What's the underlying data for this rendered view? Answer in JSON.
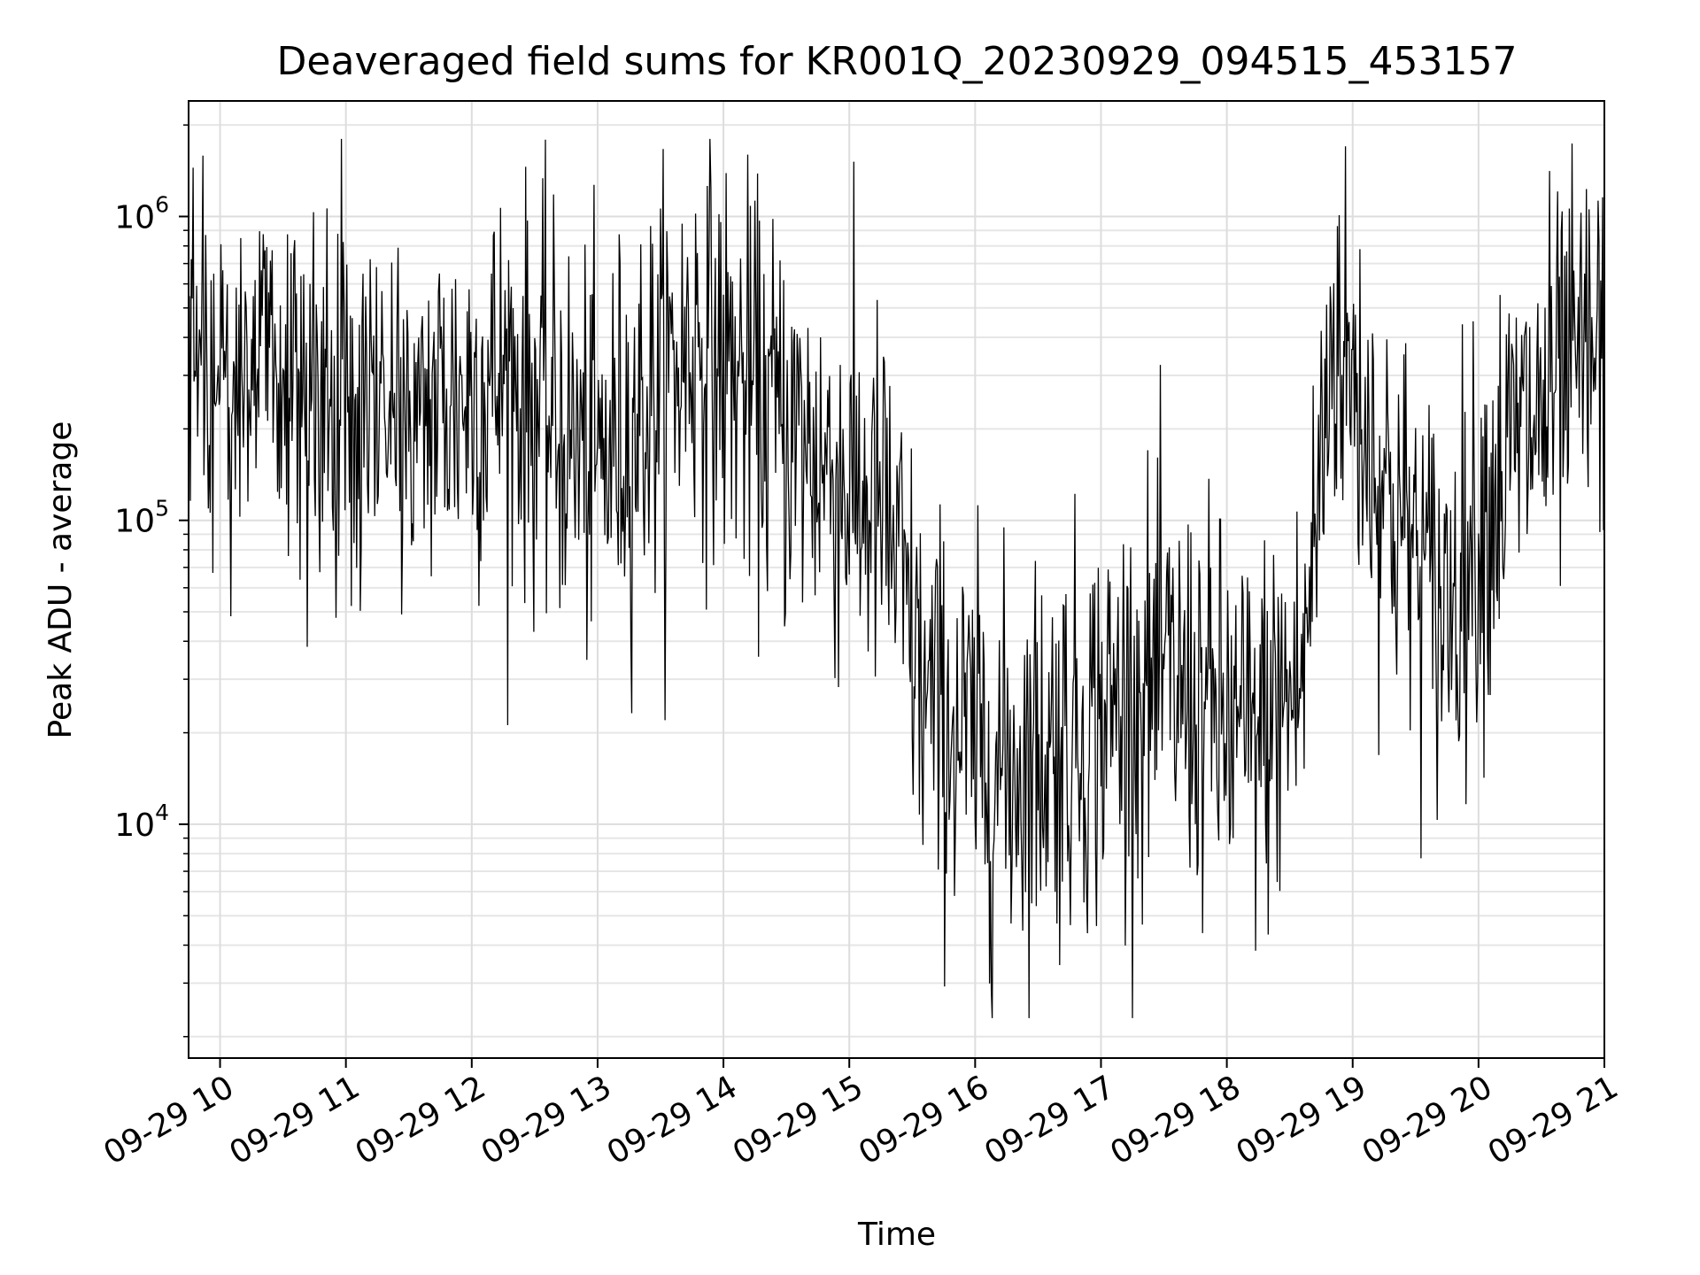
{
  "chart_data": {
    "type": "line",
    "title": "Deaveraged field sums for KR001Q_20230929_094515_453157",
    "xlabel": "Time",
    "ylabel": "Peak ADU - average",
    "yscale": "log",
    "grid": true,
    "xlim_hours": [
      9.75,
      21.0
    ],
    "ylim": [
      1700,
      2400000
    ],
    "x_ticks": [
      {
        "hour": 10,
        "label": "09-29 10"
      },
      {
        "hour": 11,
        "label": "09-29 11"
      },
      {
        "hour": 12,
        "label": "09-29 12"
      },
      {
        "hour": 13,
        "label": "09-29 13"
      },
      {
        "hour": 14,
        "label": "09-29 14"
      },
      {
        "hour": 15,
        "label": "09-29 15"
      },
      {
        "hour": 16,
        "label": "09-29 16"
      },
      {
        "hour": 17,
        "label": "09-29 17"
      },
      {
        "hour": 18,
        "label": "09-29 18"
      },
      {
        "hour": 19,
        "label": "09-29 19"
      },
      {
        "hour": 20,
        "label": "09-29 20"
      },
      {
        "hour": 21,
        "label": "09-29 21"
      }
    ],
    "y_ticks": [
      {
        "value": 10000,
        "base": "10",
        "exp": "4"
      },
      {
        "value": 100000,
        "base": "10",
        "exp": "5"
      },
      {
        "value": 1000000,
        "base": "10",
        "exp": "6"
      }
    ],
    "series": [
      {
        "name": "Peak ADU - average",
        "color": "#000000",
        "samples_per_hour": 140,
        "noise_sigma_decades": 0.33,
        "trend_hours": [
          9.75,
          10.5,
          11.5,
          12.3,
          13.0,
          13.8,
          14.5,
          15.3,
          15.6,
          16.2,
          16.8,
          17.5,
          18.2,
          18.6,
          18.85,
          19.2,
          19.7,
          20.3,
          21.0
        ],
        "trend_values": [
          280000,
          260000,
          220000,
          300000,
          150000,
          400000,
          200000,
          100000,
          25000,
          15000,
          20000,
          30000,
          18000,
          30000,
          450000,
          150000,
          50000,
          180000,
          380000
        ],
        "min_value": 2300,
        "max_value": 1800000
      }
    ]
  }
}
